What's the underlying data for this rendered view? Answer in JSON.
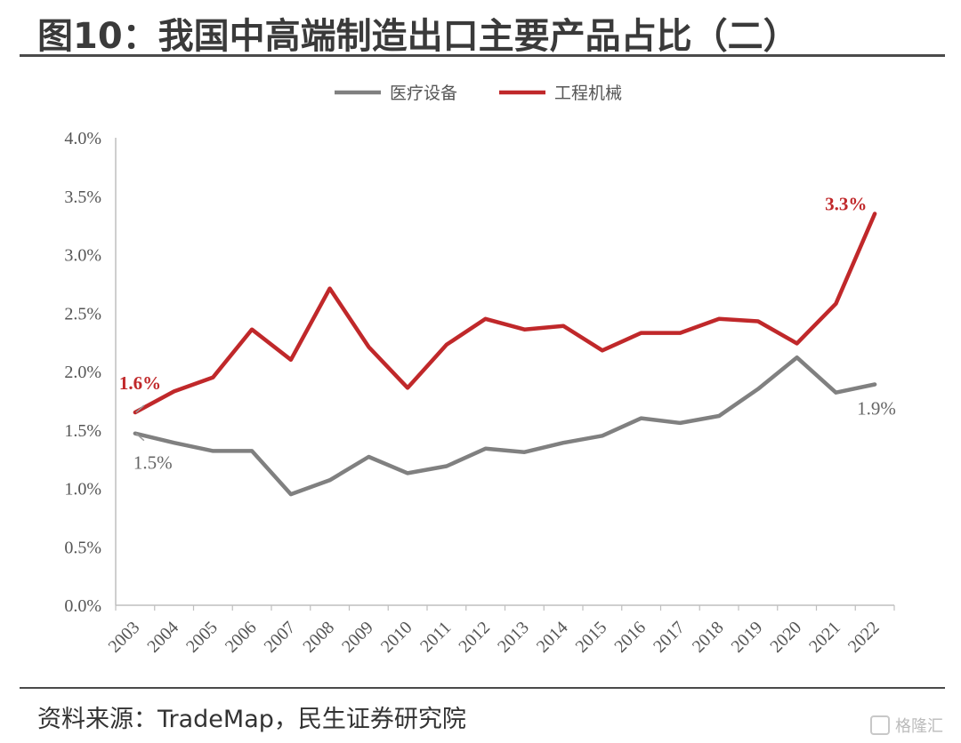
{
  "title": "图10：我国中高端制造出口主要产品占比（二）",
  "source": "资料来源：TradeMap，民生证券研究院",
  "watermark": "格隆汇",
  "chart_data": {
    "type": "line",
    "x": [
      "2003",
      "2004",
      "2005",
      "2006",
      "2007",
      "2008",
      "2009",
      "2010",
      "2011",
      "2012",
      "2013",
      "2014",
      "2015",
      "2016",
      "2017",
      "2018",
      "2019",
      "2020",
      "2021",
      "2022"
    ],
    "y_ticks": [
      "0.0%",
      "0.5%",
      "1.0%",
      "1.5%",
      "2.0%",
      "2.5%",
      "3.0%",
      "3.5%",
      "4.0%"
    ],
    "ylim": [
      0,
      4.0
    ],
    "series": [
      {
        "name": "医疗设备",
        "color": "#808080",
        "values": [
          1.47,
          1.39,
          1.32,
          1.32,
          0.95,
          1.07,
          1.27,
          1.13,
          1.19,
          1.34,
          1.31,
          1.39,
          1.45,
          1.6,
          1.56,
          1.62,
          1.85,
          2.12,
          1.82,
          1.89
        ]
      },
      {
        "name": "工程机械",
        "color": "#c0282a",
        "values": [
          1.65,
          1.83,
          1.95,
          2.36,
          2.1,
          2.71,
          2.21,
          1.86,
          2.23,
          2.45,
          2.36,
          2.39,
          2.18,
          2.33,
          2.33,
          2.45,
          2.43,
          2.24,
          2.58,
          3.35
        ]
      }
    ],
    "annotations": [
      {
        "text": "1.6%",
        "series": 1,
        "index": 0,
        "color": "#c0282a",
        "bold": true
      },
      {
        "text": "1.5%",
        "series": 0,
        "index": 0,
        "color": "#666666",
        "bold": false
      },
      {
        "text": "3.3%",
        "series": 1,
        "index": 19,
        "color": "#c0282a",
        "bold": true
      },
      {
        "text": "1.9%",
        "series": 0,
        "index": 19,
        "color": "#666666",
        "bold": false
      }
    ],
    "legend_position": "top-center",
    "grid": false
  }
}
